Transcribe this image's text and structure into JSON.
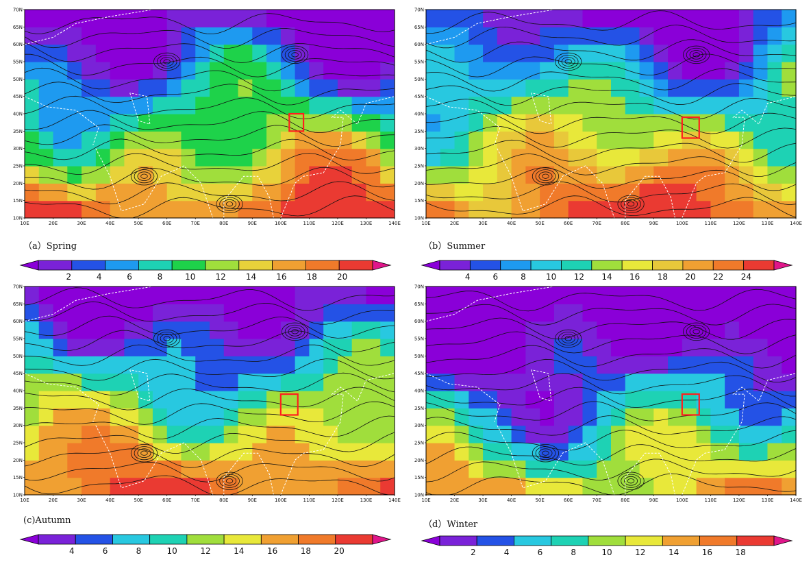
{
  "panels": [
    {
      "id": "a",
      "caption": "（a）Spring",
      "colorbar": {
        "labels": [
          "2",
          "4",
          "6",
          "8",
          "10",
          "12",
          "14",
          "16",
          "18",
          "20"
        ],
        "colors": [
          "#8a00d8",
          "#7a22d8",
          "#2452e6",
          "#1e9af0",
          "#1ed2b4",
          "#1ed24a",
          "#a0de3c",
          "#e8d23a",
          "#f0a032",
          "#f07a2a",
          "#ea3a32",
          "#e0168a"
        ]
      },
      "box": {
        "lon": [
          103,
          108
        ],
        "lat": [
          35,
          40
        ]
      }
    },
    {
      "id": "b",
      "caption": "（b）Summer",
      "colorbar": {
        "labels": [
          "4",
          "6",
          "8",
          "10",
          "12",
          "14",
          "16",
          "18",
          "20",
          "22",
          "24"
        ],
        "colors": [
          "#8a00d8",
          "#7a22d8",
          "#2452e6",
          "#1e9af0",
          "#28c8e0",
          "#1ed2b4",
          "#a0de3c",
          "#e8e83a",
          "#e8c83a",
          "#f0a032",
          "#f07a2a",
          "#ea3a32",
          "#e0168a"
        ]
      },
      "box": {
        "lon": [
          100,
          106
        ],
        "lat": [
          33,
          39
        ]
      }
    },
    {
      "id": "c",
      "caption": "(c)Autumn",
      "colorbar": {
        "labels": [
          "4",
          "6",
          "8",
          "10",
          "12",
          "14",
          "16",
          "18",
          "20"
        ],
        "colors": [
          "#8a00d8",
          "#7a22d8",
          "#2452e6",
          "#28c8e0",
          "#1ed2b4",
          "#a0de3c",
          "#e8e83a",
          "#f0a032",
          "#f07a2a",
          "#ea3a32",
          "#e0168a"
        ]
      },
      "box": {
        "lon": [
          100,
          106
        ],
        "lat": [
          33,
          39
        ]
      }
    },
    {
      "id": "d",
      "caption": "（d）Winter",
      "colorbar": {
        "labels": [
          "2",
          "4",
          "6",
          "8",
          "10",
          "12",
          "14",
          "16",
          "18"
        ],
        "colors": [
          "#8a00d8",
          "#7a22d8",
          "#2452e6",
          "#28c8e0",
          "#1ed2b4",
          "#a0de3c",
          "#e8e83a",
          "#f0a032",
          "#f07a2a",
          "#ea3a32",
          "#e0168a"
        ]
      },
      "box": {
        "lon": [
          100,
          106
        ],
        "lat": [
          33,
          39
        ]
      }
    }
  ],
  "lat_labels": [
    "10N",
    "15N",
    "20N",
    "25N",
    "30N",
    "35N",
    "40N",
    "45N",
    "50N",
    "55N",
    "60N",
    "65N",
    "70N"
  ],
  "lon_labels": [
    "10E",
    "20E",
    "30E",
    "40E",
    "50E",
    "60E",
    "70E",
    "80E",
    "90E",
    "100E",
    "110E",
    "120E",
    "130E",
    "140E"
  ],
  "box_color": "#ff1e1e"
}
